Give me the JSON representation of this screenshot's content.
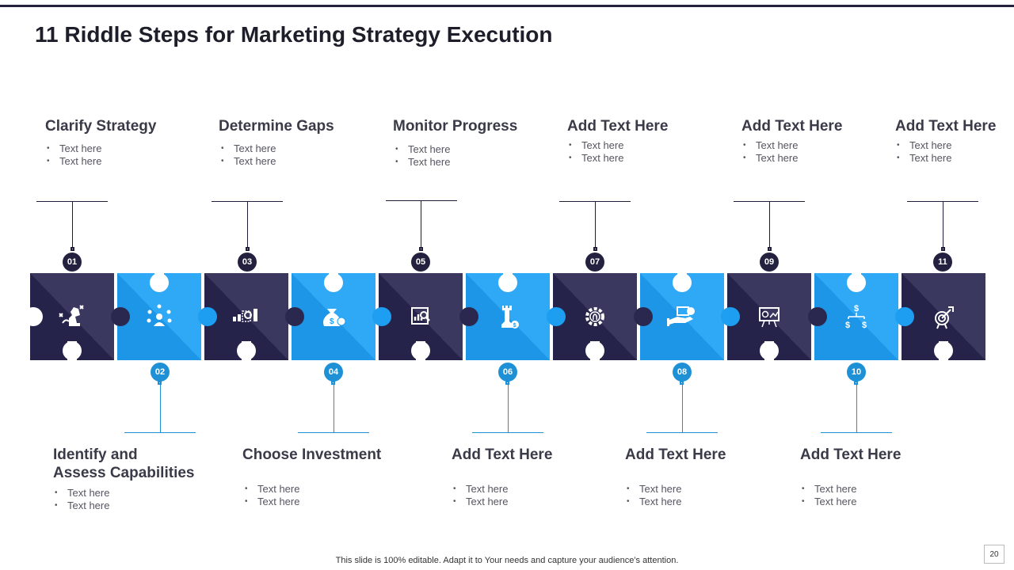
{
  "title": "11 Riddle Steps for Marketing Strategy Execution",
  "colors": {
    "dark": "#23213f",
    "blue": "#1e90d6",
    "dark_piece": "#2b2850",
    "blue_piece": "#1e9ef0"
  },
  "steps_top": [
    {
      "number": "01",
      "heading": "Clarify Strategy",
      "bullets": [
        "Text here",
        "Text here"
      ],
      "icon": "chess-knight-icon"
    },
    {
      "number": "03",
      "heading": "Determine Gaps",
      "bullets": [
        "Text here",
        "Text here"
      ],
      "icon": "gap-analysis-icon"
    },
    {
      "number": "05",
      "heading": "Monitor Progress",
      "bullets": [
        "Text here",
        "Text here"
      ],
      "icon": "chart-magnifier-icon"
    },
    {
      "number": "07",
      "heading": "Add Text Here",
      "bullets": [
        "Text here",
        "Text here"
      ],
      "icon": "gear-fingerprint-icon"
    },
    {
      "number": "09",
      "heading": "Add Text Here",
      "bullets": [
        "Text here",
        "Text here"
      ],
      "icon": "presentation-board-icon"
    },
    {
      "number": "11",
      "heading": "Add Text Here",
      "bullets": [
        "Text here",
        "Text here"
      ],
      "icon": "target-icon"
    }
  ],
  "steps_bottom": [
    {
      "number": "02",
      "heading_line1": "Identify and",
      "heading_line2": "Assess Capabilities",
      "bullets": [
        "Text here",
        "Text here"
      ],
      "icon": "team-network-icon"
    },
    {
      "number": "04",
      "heading": "Choose Investment",
      "bullets": [
        "Text here",
        "Text here"
      ],
      "icon": "money-bag-icon"
    },
    {
      "number": "06",
      "heading": "Add Text Here",
      "bullets": [
        "Text here",
        "Text here"
      ],
      "icon": "chess-rook-icon"
    },
    {
      "number": "08",
      "heading": "Add Text Here",
      "bullets": [
        "Text here",
        "Text here"
      ],
      "icon": "hand-money-icon"
    },
    {
      "number": "10",
      "heading": "Add Text Here",
      "bullets": [
        "Text here",
        "Text here"
      ],
      "icon": "dollar-hierarchy-icon"
    }
  ],
  "footer": "This slide is 100% editable. Adapt it to Your needs and capture your audience’s attention.",
  "page_number": "20"
}
